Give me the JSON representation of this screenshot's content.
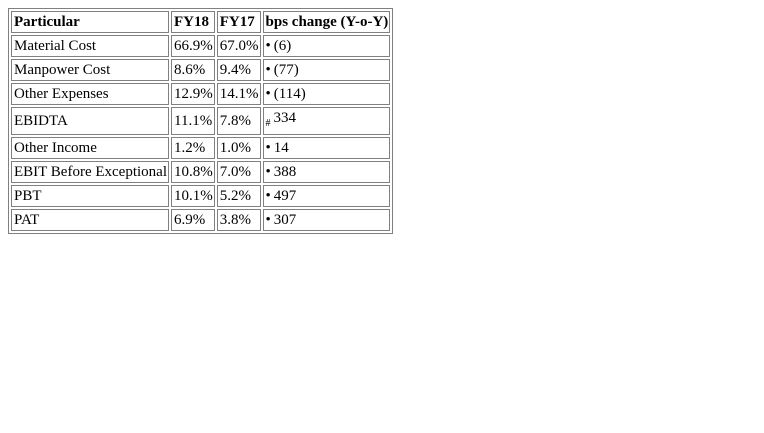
{
  "table": {
    "headers": [
      "Particular",
      "FY18",
      "FY17",
      "bps change (Y-o-Y)"
    ],
    "rows": [
      {
        "particular": "Material Cost",
        "fy18": "66.9%",
        "fy17": "67.0%",
        "marker": "•",
        "change": "(6)"
      },
      {
        "particular": "Manpower Cost",
        "fy18": "8.6%",
        "fy17": "9.4%",
        "marker": "•",
        "change": "(77)"
      },
      {
        "particular": "Other Expenses",
        "fy18": "12.9%",
        "fy17": "14.1%",
        "marker": "•",
        "change": "(114)"
      },
      {
        "particular": "EBIDTA",
        "fy18": "11.1%",
        "fy17": "7.8%",
        "marker": "#",
        "change": "334"
      },
      {
        "particular": "Other Income",
        "fy18": "1.2%",
        "fy17": "1.0%",
        "marker": "•",
        "change": "14"
      },
      {
        "particular": "EBIT Before Exceptional",
        "fy18": "10.8%",
        "fy17": "7.0%",
        "marker": "•",
        "change": "388"
      },
      {
        "particular": "PBT",
        "fy18": "10.1%",
        "fy17": "5.2%",
        "marker": "•",
        "change": "497"
      },
      {
        "particular": "PAT",
        "fy18": "6.9%",
        "fy17": "3.8%",
        "marker": "•",
        "change": "307"
      }
    ]
  }
}
